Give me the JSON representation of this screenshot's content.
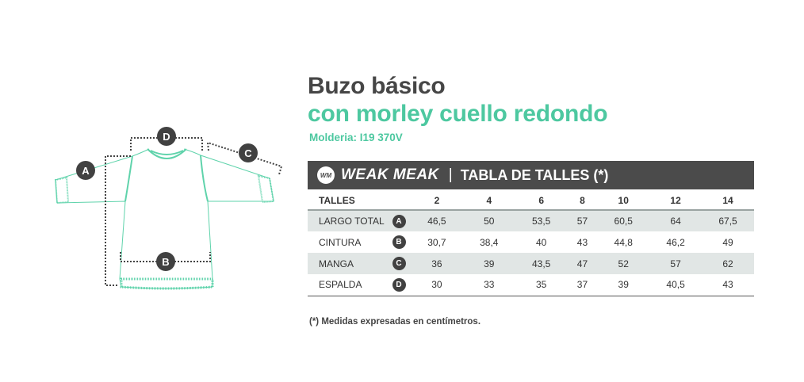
{
  "title": "Buzo básico",
  "subtitle": "con morley cuello redondo",
  "pattern": "Molderia: I19 370V",
  "header": {
    "logo_text": "WM",
    "brand": "WEAK MEAK",
    "separator": "|",
    "title": "TABLA DE TALLES (*)"
  },
  "table": {
    "header_label": "TALLES",
    "sizes": [
      "2",
      "4",
      "6",
      "8",
      "10",
      "12",
      "14"
    ],
    "rows": [
      {
        "label": "LARGO TOTAL",
        "key": "A",
        "values": [
          "46,5",
          "50",
          "53,5",
          "57",
          "60,5",
          "64",
          "67,5"
        ]
      },
      {
        "label": "CINTURA",
        "key": "B",
        "values": [
          "30,7",
          "38,4",
          "40",
          "43",
          "44,8",
          "46,2",
          "49"
        ]
      },
      {
        "label": "MANGA",
        "key": "C",
        "values": [
          "36",
          "39",
          "43,5",
          "47",
          "52",
          "57",
          "62"
        ]
      },
      {
        "label": "ESPALDA",
        "key": "D",
        "values": [
          "30",
          "33",
          "35",
          "37",
          "39",
          "40,5",
          "43"
        ]
      }
    ]
  },
  "diagram": {
    "markers": [
      "A",
      "B",
      "C",
      "D"
    ]
  },
  "footnote": "(*) Medidas expresadas en centímetros.",
  "colors": {
    "accent": "#4dc8a0",
    "dark": "#4b4b4b",
    "stripe": "#e1e6e5"
  }
}
